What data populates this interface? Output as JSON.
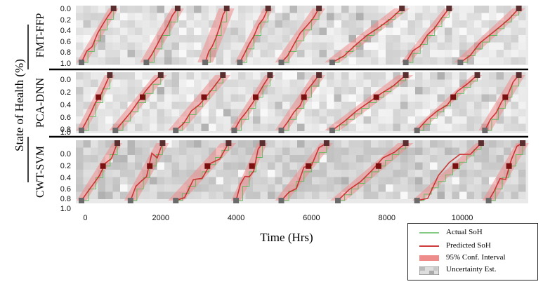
{
  "colors": {
    "actual": "#5cb85c",
    "predicted": "#c81e1e",
    "confidence": "#ee8c8c",
    "uncertainty_light": "#ececec",
    "uncertainty_dark": "#5a2e2e"
  },
  "chart_data": {
    "type": "line",
    "ylabel": "State of Health   (%)",
    "xlabel": "Time    (Hrs)",
    "xticks": [
      0,
      2000,
      4000,
      6000,
      8000,
      10000
    ],
    "xlim": [
      -250,
      11750
    ],
    "yticks": [
      "0.0",
      "0.2",
      "0.4",
      "0.6",
      "0.8",
      "1.0"
    ],
    "ylim": [
      0,
      1
    ],
    "panels": [
      {
        "name": "FMT-FFP",
        "segments": [
          [
            -100,
            750
          ],
          [
            1620,
            2450
          ],
          [
            3180,
            3750
          ],
          [
            4100,
            4850
          ],
          [
            5200,
            6200
          ],
          [
            6550,
            8400
          ],
          [
            8500,
            9650
          ],
          [
            9950,
            11500
          ]
        ]
      },
      {
        "name": "PCA-DNN",
        "segments": [
          [
            -100,
            650
          ],
          [
            800,
            2000
          ],
          [
            2400,
            3650
          ],
          [
            3950,
            4900
          ],
          [
            5200,
            6200
          ],
          [
            6550,
            8500
          ],
          [
            8800,
            10400
          ],
          [
            10600,
            11500
          ]
        ]
      },
      {
        "name": "CWT-SVM",
        "segments": [
          [
            -100,
            850
          ],
          [
            1200,
            2050
          ],
          [
            2400,
            3800
          ],
          [
            4000,
            4700
          ],
          [
            5200,
            6400
          ],
          [
            6700,
            8500
          ],
          [
            8800,
            10500
          ],
          [
            10700,
            11600
          ]
        ]
      }
    ]
  },
  "legend": {
    "items": [
      {
        "key": "actual",
        "label": "Actual SoH"
      },
      {
        "key": "predicted",
        "label": "Predicted SoH"
      },
      {
        "key": "confidence",
        "label": "95% Conf. Interval"
      },
      {
        "key": "uncertainty",
        "label": "Uncertainty Est."
      }
    ]
  }
}
